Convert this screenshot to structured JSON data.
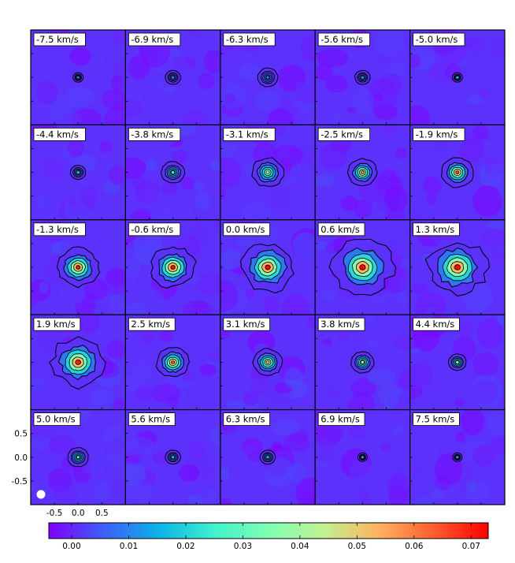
{
  "chart_data": {
    "type": "heatmap",
    "title": "",
    "xlabel": "",
    "ylabel": "",
    "grid": {
      "rows": 5,
      "cols": 5
    },
    "panels": [
      {
        "label": "-7.5 km/s",
        "peak": 0.008,
        "size": 0.6,
        "extent": 0.0,
        "dx": 0.0,
        "dy": 0.0
      },
      {
        "label": "-6.9 km/s",
        "peak": 0.01,
        "size": 0.6,
        "extent": 0.1,
        "dx": 0.0,
        "dy": 0.0
      },
      {
        "label": "-6.3 km/s",
        "peak": 0.011,
        "size": 0.6,
        "extent": 0.2,
        "dx": 0.0,
        "dy": 0.0
      },
      {
        "label": "-5.6 km/s",
        "peak": 0.012,
        "size": 0.6,
        "extent": 0.1,
        "dx": 0.0,
        "dy": 0.0
      },
      {
        "label": "-5.0 km/s",
        "peak": 0.016,
        "size": 0.6,
        "extent": 0.0,
        "dx": 0.0,
        "dy": 0.0
      },
      {
        "label": "-4.4 km/s",
        "peak": 0.019,
        "size": 0.6,
        "extent": 0.1,
        "dx": 0.0,
        "dy": 0.0
      },
      {
        "label": "-3.8 km/s",
        "peak": 0.028,
        "size": 0.62,
        "extent": 0.25,
        "dx": 0.0,
        "dy": 0.0
      },
      {
        "label": "-3.1 km/s",
        "peak": 0.042,
        "size": 0.65,
        "extent": 0.4,
        "dx": 0.0,
        "dy": 0.0
      },
      {
        "label": "-2.5 km/s",
        "peak": 0.06,
        "size": 0.68,
        "extent": 0.35,
        "dx": 0.0,
        "dy": 0.0
      },
      {
        "label": "-1.9 km/s",
        "peak": 0.066,
        "size": 0.7,
        "extent": 0.4,
        "dx": 0.0,
        "dy": 0.0
      },
      {
        "label": "-1.3 km/s",
        "peak": 0.071,
        "size": 0.78,
        "extent": 0.55,
        "dx": 0.0,
        "dy": 0.0
      },
      {
        "label": "-0.6 km/s",
        "peak": 0.072,
        "size": 0.8,
        "extent": 0.6,
        "dx": 0.0,
        "dy": 0.0
      },
      {
        "label": "0.0 km/s",
        "peak": 0.073,
        "size": 0.85,
        "extent": 0.75,
        "dx": 0.0,
        "dy": 0.0
      },
      {
        "label": "0.6 km/s",
        "peak": 0.073,
        "size": 0.9,
        "extent": 0.85,
        "dx": 0.0,
        "dy": 0.0
      },
      {
        "label": "1.3 km/s",
        "peak": 0.072,
        "size": 0.9,
        "extent": 0.85,
        "dx": 0.0,
        "dy": 0.0
      },
      {
        "label": "1.9 km/s",
        "peak": 0.07,
        "size": 0.85,
        "extent": 0.75,
        "dx": 0.0,
        "dy": 0.0
      },
      {
        "label": "2.5 km/s",
        "peak": 0.066,
        "size": 0.72,
        "extent": 0.4,
        "dx": 0.0,
        "dy": 0.0
      },
      {
        "label": "3.1 km/s",
        "peak": 0.055,
        "size": 0.68,
        "extent": 0.35,
        "dx": 0.0,
        "dy": 0.0
      },
      {
        "label": "3.8 km/s",
        "peak": 0.045,
        "size": 0.62,
        "extent": 0.25,
        "dx": 0.0,
        "dy": 0.0
      },
      {
        "label": "4.4 km/s",
        "peak": 0.04,
        "size": 0.6,
        "extent": 0.15,
        "dx": 0.0,
        "dy": 0.0
      },
      {
        "label": "5.0 km/s",
        "peak": 0.03,
        "size": 0.62,
        "extent": 0.2,
        "dx": 0.0,
        "dy": 0.0
      },
      {
        "label": "5.6 km/s",
        "peak": 0.018,
        "size": 0.6,
        "extent": 0.1,
        "dx": 0.0,
        "dy": 0.0
      },
      {
        "label": "6.3 km/s",
        "peak": 0.018,
        "size": 0.6,
        "extent": 0.1,
        "dx": 0.0,
        "dy": 0.0
      },
      {
        "label": "6.9 km/s",
        "peak": 0.013,
        "size": 0.55,
        "extent": 0.0,
        "dx": 0.0,
        "dy": 0.0
      },
      {
        "label": "7.5 km/s",
        "peak": 0.012,
        "size": 0.55,
        "extent": 0.0,
        "dx": 0.0,
        "dy": 0.0
      }
    ],
    "panel_extent": [
      -1.0,
      1.0
    ],
    "x_ticks": [
      "-0.5",
      "0.0",
      "0.5"
    ],
    "x_tick_values": [
      -0.5,
      0.0,
      0.5
    ],
    "y_ticks": [
      "0.5",
      "0.0",
      "-0.5"
    ],
    "y_tick_values": [
      0.5,
      0.0,
      -0.5
    ],
    "colorbar": {
      "range": [
        -0.004,
        0.073
      ],
      "ticks": [
        "0.00",
        "0.01",
        "0.02",
        "0.03",
        "0.04",
        "0.05",
        "0.06",
        "0.07"
      ],
      "tick_values": [
        0.0,
        0.01,
        0.02,
        0.03,
        0.04,
        0.05,
        0.06,
        0.07
      ],
      "colormap": "rainbow"
    },
    "background_level": 0.001,
    "contour_color": "#000000",
    "beam_color": "#ffffff"
  }
}
